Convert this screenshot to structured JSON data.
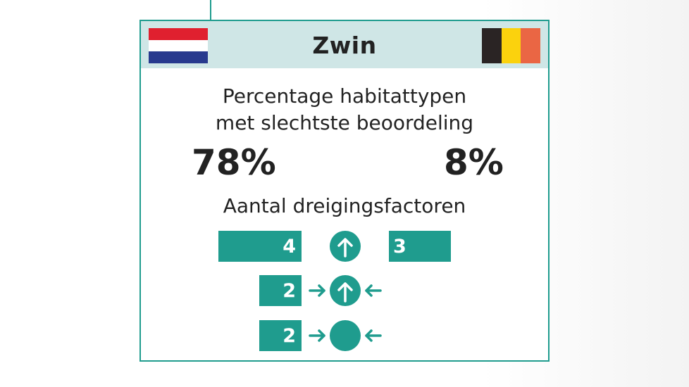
{
  "header": {
    "title": "Zwin",
    "flags": {
      "netherlands": [
        "#e0202f",
        "#ffffff",
        "#283a8e"
      ],
      "belgium": [
        "#2a2424",
        "#fbd20d",
        "#ea6644"
      ]
    }
  },
  "habitat": {
    "heading_line1": "Percentage habitattypen",
    "heading_line2": "met slechtste beoordeling",
    "netherlands_value": "78%",
    "belgium_value": "8%"
  },
  "threats": {
    "heading": "Aantal dreigingsfactoren",
    "rows": [
      {
        "icon": "circle-arrow-up-icon",
        "netherlands_count": "4",
        "belgium_count": "3"
      },
      {
        "icon": "circle-arrow-up-inward-arrows-icon",
        "netherlands_count": "2"
      },
      {
        "icon": "circle-inward-arrows-icon",
        "netherlands_count": "2"
      }
    ]
  },
  "colors": {
    "accent": "#1f9c8e",
    "header_bg": "#cfe6e6",
    "text": "#222222"
  }
}
